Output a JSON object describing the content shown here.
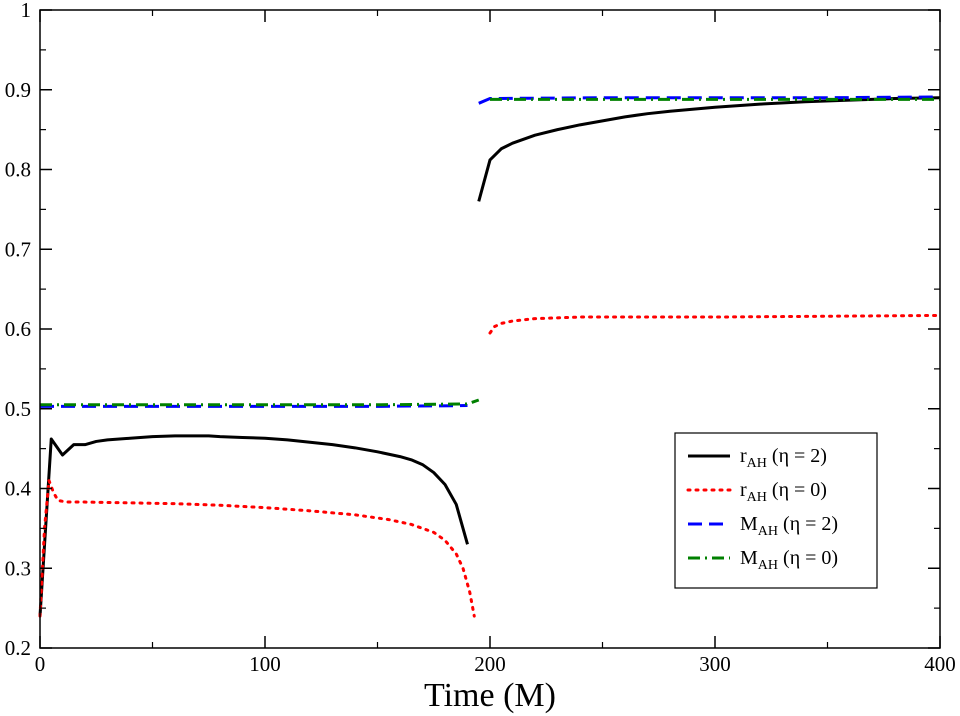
{
  "chart_data": {
    "type": "line",
    "title": "",
    "xlabel": "Time (M)",
    "ylabel": "",
    "xlim": [
      0,
      400
    ],
    "ylim": [
      0.2,
      1.0
    ],
    "xticks": [
      0,
      100,
      200,
      300,
      400
    ],
    "xtick_labels": [
      "0",
      "100",
      "200",
      "300",
      "400"
    ],
    "yticks": [
      0.2,
      0.3,
      0.4,
      0.5,
      0.6,
      0.7,
      0.8,
      0.9,
      1.0
    ],
    "ytick_labels": [
      "0.2",
      "0.3",
      "0.4",
      "0.5",
      "0.6",
      "0.7",
      "0.8",
      "0.9",
      "1"
    ],
    "grid": false,
    "legend_position": "bottom-right",
    "series": [
      {
        "name": "r_AH (η = 2)",
        "legend_main": "r",
        "legend_sub": "AH",
        "legend_rest": " (η = 2)",
        "color": "#000000",
        "style": "solid",
        "segments": [
          [
            [
              0,
              0.24
            ],
            [
              5,
              0.462
            ],
            [
              10,
              0.442
            ],
            [
              15,
              0.455
            ],
            [
              20,
              0.455
            ],
            [
              25,
              0.459
            ],
            [
              30,
              0.461
            ],
            [
              40,
              0.463
            ],
            [
              50,
              0.465
            ],
            [
              60,
              0.466
            ],
            [
              75,
              0.466
            ],
            [
              80,
              0.465
            ],
            [
              90,
              0.464
            ],
            [
              100,
              0.463
            ],
            [
              110,
              0.461
            ],
            [
              120,
              0.458
            ],
            [
              130,
              0.455
            ],
            [
              140,
              0.451
            ],
            [
              150,
              0.446
            ],
            [
              160,
              0.44
            ],
            [
              165,
              0.436
            ],
            [
              170,
              0.43
            ],
            [
              175,
              0.42
            ],
            [
              180,
              0.405
            ],
            [
              185,
              0.38
            ],
            [
              190,
              0.33
            ]
          ],
          [
            [
              195,
              0.76
            ],
            [
              200,
              0.812
            ],
            [
              205,
              0.826
            ],
            [
              210,
              0.833
            ],
            [
              220,
              0.843
            ],
            [
              230,
              0.85
            ],
            [
              240,
              0.856
            ],
            [
              250,
              0.861
            ],
            [
              260,
              0.866
            ],
            [
              270,
              0.87
            ],
            [
              280,
              0.873
            ],
            [
              300,
              0.878
            ],
            [
              320,
              0.882
            ],
            [
              340,
              0.885
            ],
            [
              360,
              0.887
            ],
            [
              380,
              0.889
            ],
            [
              400,
              0.89
            ]
          ]
        ]
      },
      {
        "name": "r_AH (η = 0)",
        "legend_main": "r",
        "legend_sub": "AH",
        "legend_rest": " (η = 0)",
        "color": "#ff0000",
        "style": "dotted",
        "segments": [
          [
            [
              0,
              0.24
            ],
            [
              2,
              0.35
            ],
            [
              4,
              0.41
            ],
            [
              6,
              0.395
            ],
            [
              8,
              0.385
            ],
            [
              12,
              0.383
            ],
            [
              20,
              0.383
            ],
            [
              40,
              0.382
            ],
            [
              60,
              0.381
            ],
            [
              80,
              0.379
            ],
            [
              100,
              0.376
            ],
            [
              120,
              0.372
            ],
            [
              140,
              0.367
            ],
            [
              155,
              0.361
            ],
            [
              165,
              0.355
            ],
            [
              175,
              0.345
            ],
            [
              180,
              0.335
            ],
            [
              185,
              0.318
            ],
            [
              188,
              0.3
            ],
            [
              191,
              0.27
            ],
            [
              193,
              0.24
            ]
          ],
          [
            [
              200,
              0.595
            ],
            [
              202,
              0.603
            ],
            [
              205,
              0.607
            ],
            [
              210,
              0.61
            ],
            [
              220,
              0.613
            ],
            [
              240,
              0.615
            ],
            [
              270,
              0.615
            ],
            [
              300,
              0.615
            ],
            [
              350,
              0.616
            ],
            [
              400,
              0.617
            ]
          ]
        ]
      },
      {
        "name": "M_AH (η = 2)",
        "legend_main": "M",
        "legend_sub": "AH",
        "legend_rest": " (η = 2)",
        "color": "#0000ff",
        "style": "dashed",
        "segments": [
          [
            [
              0,
              0.503
            ],
            [
              50,
              0.503
            ],
            [
              100,
              0.503
            ],
            [
              150,
              0.503
            ],
            [
              190,
              0.504
            ]
          ],
          [
            [
              195,
              0.883
            ],
            [
              200,
              0.889
            ],
            [
              250,
              0.89
            ],
            [
              300,
              0.89
            ],
            [
              350,
              0.89
            ],
            [
              400,
              0.891
            ]
          ]
        ]
      },
      {
        "name": "M_AH (η = 0)",
        "legend_main": "M",
        "legend_sub": "AH",
        "legend_rest": " (η = 0)",
        "color": "#008000",
        "style": "dashdot",
        "segments": [
          [
            [
              0,
              0.505
            ],
            [
              50,
              0.505
            ],
            [
              100,
              0.505
            ],
            [
              150,
              0.505
            ],
            [
              190,
              0.506
            ],
            [
              195,
              0.511
            ]
          ],
          [
            [
              200,
              0.888
            ],
            [
              250,
              0.888
            ],
            [
              300,
              0.888
            ],
            [
              350,
              0.888
            ],
            [
              400,
              0.888
            ]
          ]
        ]
      }
    ]
  }
}
